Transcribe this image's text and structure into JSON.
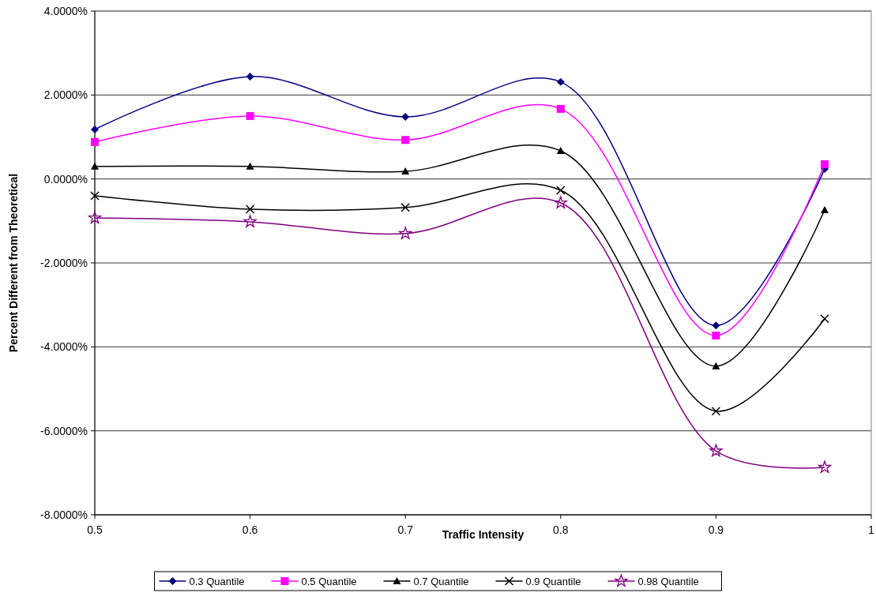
{
  "chart_data": {
    "type": "line",
    "xlabel": "Traffic Intensity",
    "ylabel": "Percent Different from Theoretical",
    "x": [
      0.5,
      0.6,
      0.7,
      0.8,
      0.9,
      0.97
    ],
    "xlim": [
      0.5,
      1
    ],
    "xticks": [
      0.5,
      0.6,
      0.7,
      0.8,
      0.9,
      1
    ],
    "ylim": [
      -8,
      4
    ],
    "yticks": [
      {
        "value": -8,
        "label": "-8.0000%"
      },
      {
        "value": -6,
        "label": "-6.0000%"
      },
      {
        "value": -4,
        "label": "-4.0000%"
      },
      {
        "value": -2,
        "label": "-2.0000%"
      },
      {
        "value": 0,
        "label": "0.0000%"
      },
      {
        "value": 2,
        "label": "2.0000%"
      },
      {
        "value": 4,
        "label": "4.0000%"
      }
    ],
    "grid": "y",
    "legend": "bottom",
    "line_style": "solid",
    "series": [
      {
        "name": "0.3 Quantile",
        "color": "#000080",
        "marker": "diamond",
        "values": [
          1.18,
          2.44,
          1.48,
          2.31,
          -3.49,
          0.24
        ]
      },
      {
        "name": "0.5 Quantile",
        "color": "#ff00ff",
        "marker": "square",
        "values": [
          0.88,
          1.5,
          0.93,
          1.67,
          -3.73,
          0.35
        ]
      },
      {
        "name": "0.7 Quantile",
        "color": "#000000",
        "marker": "triangle",
        "values": [
          0.3,
          0.3,
          0.18,
          0.67,
          -4.46,
          -0.74
        ]
      },
      {
        "name": "0.9 Quantile",
        "color": "#000000",
        "marker": "cross",
        "values": [
          -0.4,
          -0.72,
          -0.68,
          -0.27,
          -5.53,
          -3.33
        ]
      },
      {
        "name": "0.98 Quantile",
        "color": "#800080",
        "marker": "star",
        "values": [
          -0.93,
          -1.02,
          -1.3,
          -0.57,
          -6.48,
          -6.87
        ]
      }
    ]
  }
}
